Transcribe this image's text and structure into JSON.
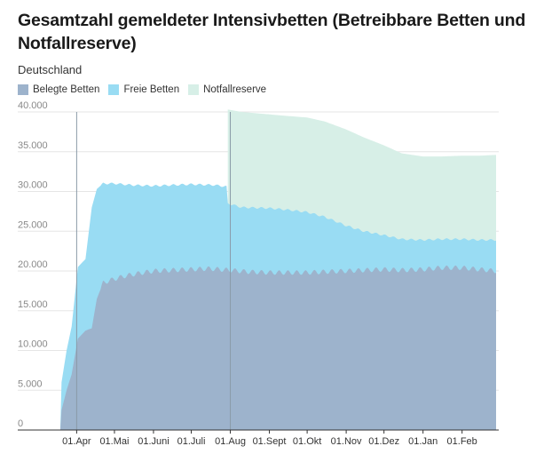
{
  "header": {
    "title": "Gesamtzahl gemeldeter Intensivbetten (Betreibbare Betten und Notfallreserve)",
    "subtitle": "Deutschland"
  },
  "colors": {
    "belegte": "#9db3cc",
    "freie": "#99dcf3",
    "notfall": "#d7efe7",
    "grid": "#e5e5e5",
    "axis": "#333333"
  },
  "chart_data": {
    "type": "area",
    "stacked": true,
    "title": "Gesamtzahl gemeldeter Intensivbetten (Betreibbare Betten und Notfallreserve)",
    "subtitle": "Deutschland",
    "y_ticks": [
      0,
      5000,
      10000,
      15000,
      20000,
      25000,
      30000,
      35000,
      40000
    ],
    "y_tick_labels": [
      "0",
      "5.000",
      "10.000",
      "15.000",
      "20.000",
      "25.000",
      "30.000",
      "35.000",
      "40.000"
    ],
    "ylim": [
      0,
      40000
    ],
    "xlim": [
      "2020-03-12",
      "2021-02-28"
    ],
    "x_ticks": [
      {
        "date": "2020-04-01",
        "label": "01.Apr"
      },
      {
        "date": "2020-05-01",
        "label": "01.Mai"
      },
      {
        "date": "2020-06-01",
        "label": "01.Juni"
      },
      {
        "date": "2020-07-01",
        "label": "01.Juli"
      },
      {
        "date": "2020-08-01",
        "label": "01.Aug"
      },
      {
        "date": "2020-09-01",
        "label": "01.Sept"
      },
      {
        "date": "2020-10-01",
        "label": "01.Okt"
      },
      {
        "date": "2020-11-01",
        "label": "01.Nov"
      },
      {
        "date": "2020-12-01",
        "label": "01.Dez"
      },
      {
        "date": "2021-01-01",
        "label": "01.Jan"
      },
      {
        "date": "2021-02-01",
        "label": "01.Feb"
      }
    ],
    "vertical_markers": [
      "2020-04-01",
      "2020-08-01"
    ],
    "series": [
      {
        "name": "Belegte Betten",
        "color": "#9db3cc",
        "points": [
          [
            "2020-03-19",
            0
          ],
          [
            "2020-03-20",
            2500
          ],
          [
            "2020-03-24",
            5000
          ],
          [
            "2020-03-28",
            7000
          ],
          [
            "2020-04-02",
            11500
          ],
          [
            "2020-04-08",
            12500
          ],
          [
            "2020-04-13",
            12800
          ],
          [
            "2020-04-17",
            16500
          ],
          [
            "2020-04-22",
            18500
          ],
          [
            "2020-04-27",
            18800
          ],
          [
            "2020-05-01",
            19000
          ],
          [
            "2020-05-10",
            19400
          ],
          [
            "2020-05-20",
            19700
          ],
          [
            "2020-06-01",
            20000
          ],
          [
            "2020-06-15",
            20100
          ],
          [
            "2020-07-01",
            20200
          ],
          [
            "2020-07-15",
            20300
          ],
          [
            "2020-08-01",
            20100
          ],
          [
            "2020-08-15",
            19900
          ],
          [
            "2020-09-01",
            19800
          ],
          [
            "2020-09-15",
            19800
          ],
          [
            "2020-10-01",
            19800
          ],
          [
            "2020-10-15",
            19900
          ],
          [
            "2020-11-01",
            20000
          ],
          [
            "2020-11-15",
            20100
          ],
          [
            "2020-12-01",
            20200
          ],
          [
            "2020-12-15",
            20100
          ],
          [
            "2021-01-01",
            20200
          ],
          [
            "2021-01-15",
            20400
          ],
          [
            "2021-02-01",
            20400
          ],
          [
            "2021-02-15",
            20200
          ],
          [
            "2021-02-28",
            20000
          ]
        ]
      },
      {
        "name": "Freie Betten",
        "color": "#99dcf3",
        "points": [
          [
            "2020-03-19",
            0
          ],
          [
            "2020-03-20",
            6000
          ],
          [
            "2020-03-24",
            10000
          ],
          [
            "2020-03-28",
            13000
          ],
          [
            "2020-04-02",
            20500
          ],
          [
            "2020-04-08",
            21500
          ],
          [
            "2020-04-13",
            28000
          ],
          [
            "2020-04-17",
            30300
          ],
          [
            "2020-04-22",
            31000
          ],
          [
            "2020-05-01",
            31000
          ],
          [
            "2020-05-15",
            30800
          ],
          [
            "2020-06-01",
            30700
          ],
          [
            "2020-06-15",
            30800
          ],
          [
            "2020-07-01",
            30900
          ],
          [
            "2020-07-20",
            30800
          ],
          [
            "2020-07-29",
            30600
          ],
          [
            "2020-07-30",
            28500
          ],
          [
            "2020-08-10",
            28000
          ],
          [
            "2020-09-01",
            27900
          ],
          [
            "2020-09-15",
            27700
          ],
          [
            "2020-10-01",
            27400
          ],
          [
            "2020-10-15",
            26800
          ],
          [
            "2020-11-01",
            25700
          ],
          [
            "2020-11-15",
            25000
          ],
          [
            "2020-12-01",
            24500
          ],
          [
            "2020-12-15",
            24000
          ],
          [
            "2021-01-01",
            23900
          ],
          [
            "2021-01-15",
            24000
          ],
          [
            "2021-02-01",
            24000
          ],
          [
            "2021-02-15",
            23900
          ],
          [
            "2021-02-28",
            23900
          ]
        ]
      },
      {
        "name": "Notfallreserve",
        "color": "#d7efe7",
        "points": [
          [
            "2020-07-30",
            40300
          ],
          [
            "2020-08-10",
            40000
          ],
          [
            "2020-09-01",
            39700
          ],
          [
            "2020-09-15",
            39500
          ],
          [
            "2020-10-01",
            39300
          ],
          [
            "2020-10-15",
            38800
          ],
          [
            "2020-11-01",
            37800
          ],
          [
            "2020-11-15",
            36800
          ],
          [
            "2020-12-01",
            35800
          ],
          [
            "2020-12-15",
            34800
          ],
          [
            "2021-01-01",
            34400
          ],
          [
            "2021-01-15",
            34400
          ],
          [
            "2021-02-01",
            34500
          ],
          [
            "2021-02-15",
            34500
          ],
          [
            "2021-02-28",
            34600
          ]
        ]
      }
    ],
    "legend_position": "top-left",
    "grid": true
  }
}
